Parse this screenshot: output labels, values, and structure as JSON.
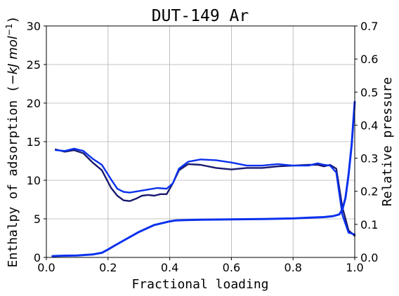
{
  "chart_data": {
    "type": "line",
    "title": "DUT-149 Ar",
    "xlabel": "Fractional loading",
    "ylabel_left_prefix": "Enthalpy of adsorption (",
    "ylabel_left_unit": "−kJ mol",
    "ylabel_left_exp": "−1",
    "ylabel_left_suffix": ")",
    "ylabel_right": "Relative pressure",
    "xlim": [
      0.0,
      1.0
    ],
    "ylim_left": [
      0,
      30
    ],
    "ylim_right": [
      0.0,
      0.7
    ],
    "x_ticks": [
      "0.0",
      "0.2",
      "0.4",
      "0.6",
      "0.8",
      "1.0"
    ],
    "y_left_ticks": [
      "0",
      "5",
      "10",
      "15",
      "20",
      "25",
      "30"
    ],
    "y_right_ticks": [
      "0.0",
      "0.1",
      "0.2",
      "0.3",
      "0.4",
      "0.5",
      "0.6",
      "0.7"
    ],
    "grid": true,
    "series": [
      {
        "axis": "left",
        "color": "#191970",
        "x": [
          0.03,
          0.06,
          0.09,
          0.12,
          0.15,
          0.18,
          0.21,
          0.23,
          0.25,
          0.27,
          0.29,
          0.31,
          0.33,
          0.35,
          0.37,
          0.39,
          0.41,
          0.43,
          0.46,
          0.5,
          0.55,
          0.6,
          0.65,
          0.7,
          0.75,
          0.8,
          0.85,
          0.88,
          0.9,
          0.92,
          0.94,
          0.96,
          0.98,
          1.0
        ],
        "y": [
          14.0,
          13.7,
          13.9,
          13.5,
          12.3,
          11.3,
          9.0,
          8.0,
          7.4,
          7.3,
          7.6,
          8.0,
          8.1,
          8.0,
          8.2,
          8.2,
          9.6,
          11.3,
          12.1,
          12.0,
          11.6,
          11.4,
          11.6,
          11.6,
          11.8,
          11.9,
          12.0,
          12.0,
          11.8,
          12.0,
          11.5,
          6.5,
          3.5,
          2.8
        ]
      },
      {
        "axis": "left",
        "color": "#0a30ee",
        "x": [
          0.03,
          0.06,
          0.09,
          0.12,
          0.15,
          0.18,
          0.21,
          0.23,
          0.25,
          0.27,
          0.3,
          0.33,
          0.36,
          0.39,
          0.41,
          0.43,
          0.46,
          0.5,
          0.55,
          0.6,
          0.65,
          0.7,
          0.75,
          0.8,
          0.85,
          0.88,
          0.9,
          0.92,
          0.94,
          0.96,
          0.98,
          1.0
        ],
        "y": [
          13.9,
          13.8,
          14.1,
          13.8,
          12.8,
          12.0,
          10.1,
          8.9,
          8.5,
          8.4,
          8.6,
          8.8,
          9.0,
          8.9,
          9.6,
          11.5,
          12.4,
          12.7,
          12.6,
          12.3,
          11.9,
          11.9,
          12.1,
          11.9,
          11.9,
          12.2,
          12.0,
          11.9,
          11.0,
          5.5,
          3.2,
          3.0
        ]
      },
      {
        "axis": "right",
        "color": "#0a30ee",
        "x": [
          0.02,
          0.05,
          0.1,
          0.15,
          0.18,
          0.2,
          0.22,
          0.25,
          0.3,
          0.35,
          0.4,
          0.42,
          0.45,
          0.5,
          0.6,
          0.7,
          0.8,
          0.85,
          0.9,
          0.93,
          0.95,
          0.96,
          0.97,
          0.98,
          0.99,
          1.0
        ],
        "y": [
          0.004,
          0.005,
          0.006,
          0.009,
          0.014,
          0.024,
          0.035,
          0.051,
          0.077,
          0.098,
          0.109,
          0.112,
          0.113,
          0.114,
          0.115,
          0.116,
          0.118,
          0.12,
          0.122,
          0.125,
          0.13,
          0.145,
          0.18,
          0.25,
          0.34,
          0.47
        ]
      }
    ]
  }
}
